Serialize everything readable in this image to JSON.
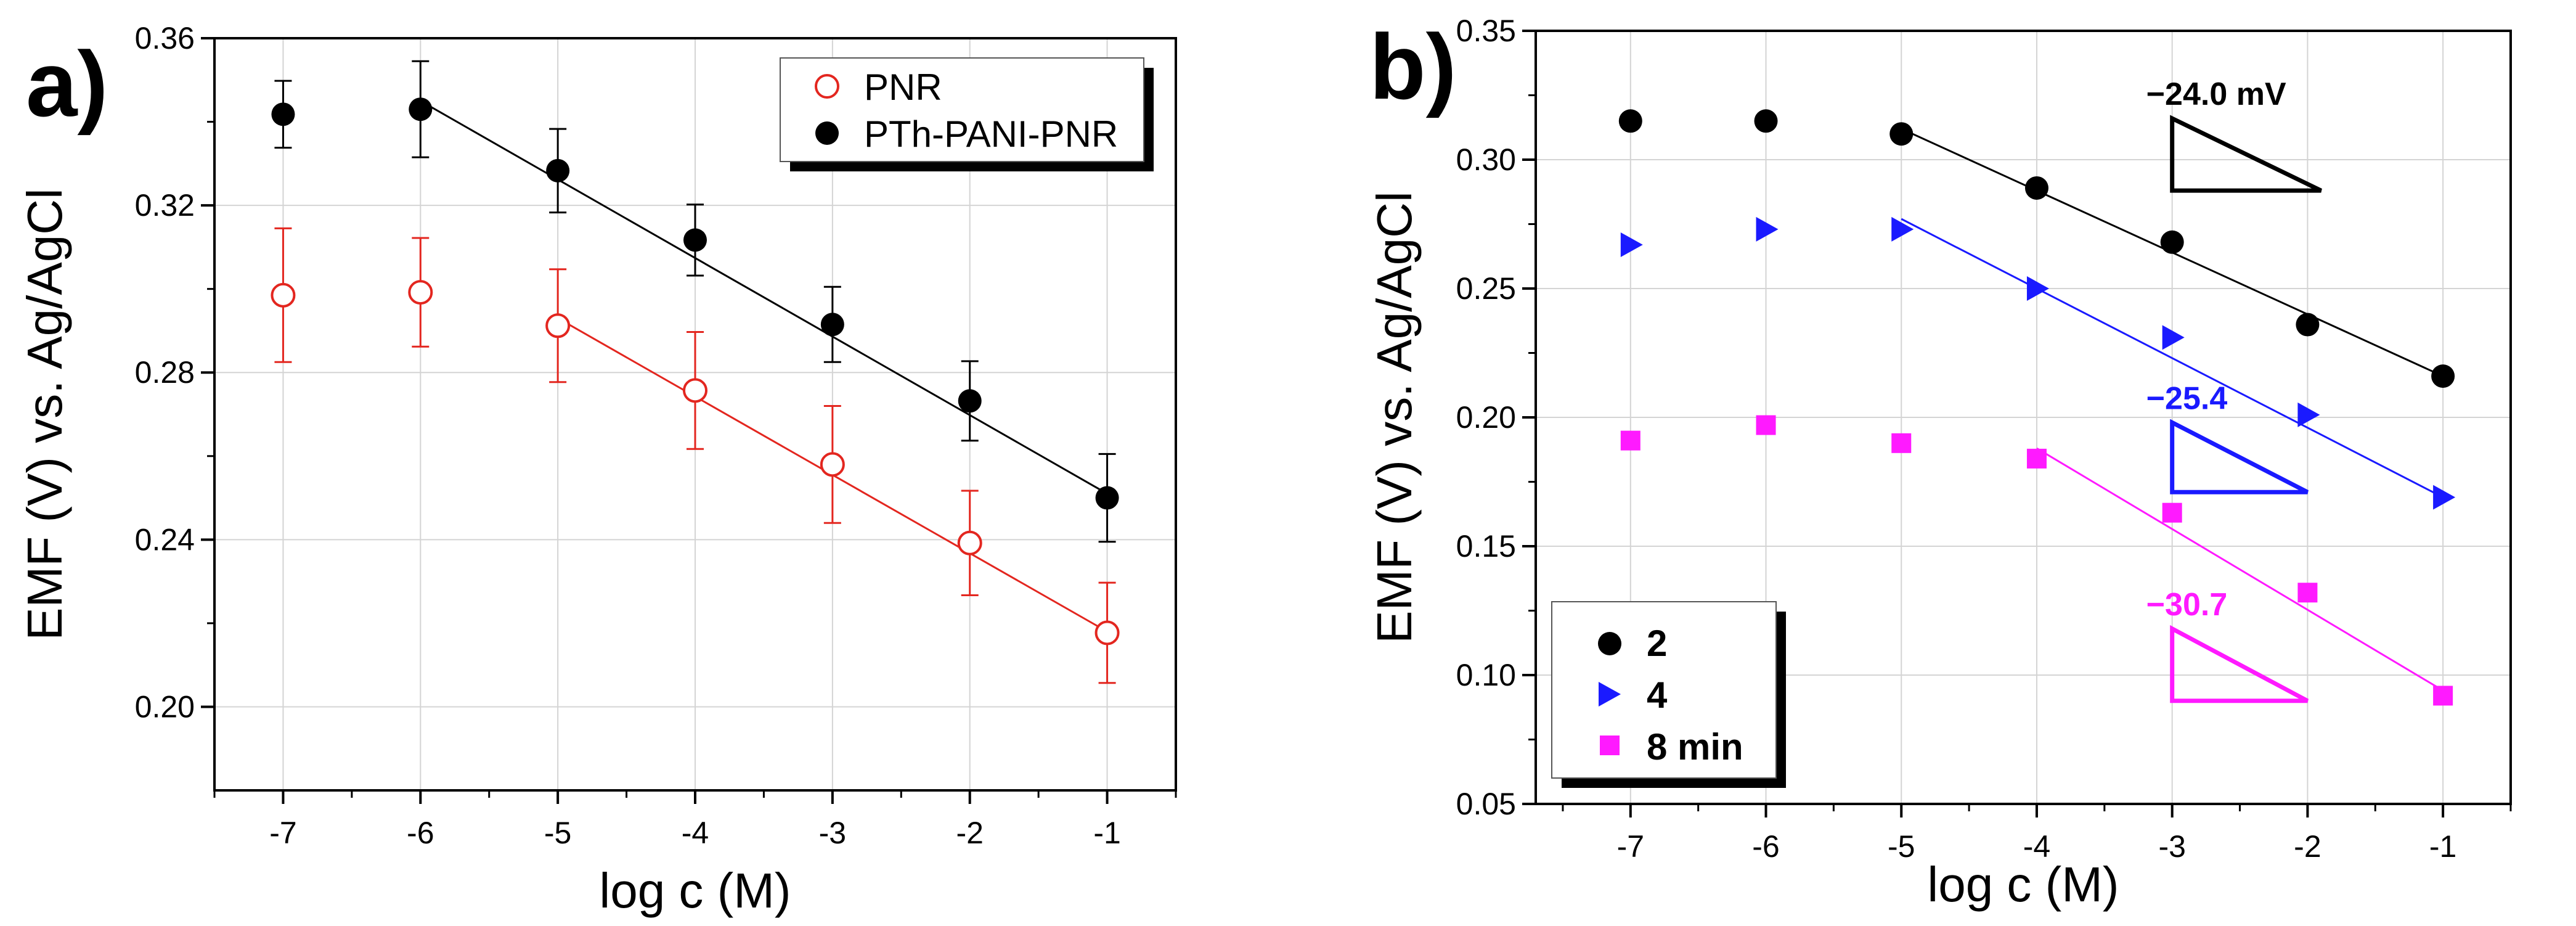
{
  "chart_data": [
    {
      "panel_label": "a)",
      "type": "scatter",
      "xlabel": "log c (M)",
      "ylabel": "EMF (V) vs. Ag/AgCl",
      "xlim": [
        -7.5,
        -0.5
      ],
      "ylim": [
        0.18,
        0.36
      ],
      "x_ticks": [
        -7,
        -6,
        -5,
        -4,
        -3,
        -2,
        -1
      ],
      "x_tick_labels": [
        "-7",
        "-6",
        "-5",
        "-4",
        "-3",
        "-2",
        "-1"
      ],
      "y_ticks": [
        0.2,
        0.24,
        0.28,
        0.32,
        0.36
      ],
      "y_tick_labels": [
        "0.20",
        "0.24",
        "0.28",
        "0.32",
        "0.36"
      ],
      "grid": true,
      "legend_position": "top-right",
      "series": [
        {
          "name": "PNR",
          "color": "#e3261f",
          "marker": "open-circle",
          "x": [
            -7,
            -6,
            -5,
            -4,
            -3,
            -2,
            -1
          ],
          "y": [
            0.2985,
            0.2992,
            0.2912,
            0.2757,
            0.258,
            0.2392,
            0.2177
          ],
          "err": [
            0.016,
            0.013,
            0.0135,
            0.014,
            0.014,
            0.0125,
            0.012
          ],
          "fit": {
            "x": [
              -5,
              -1
            ],
            "y": [
              0.293,
              0.218
            ]
          }
        },
        {
          "name": "PTh-PANI-PNR",
          "color": "#000000",
          "marker": "filled-circle",
          "x": [
            -7,
            -6,
            -5,
            -4,
            -3,
            -2,
            -1
          ],
          "y": [
            0.3418,
            0.343,
            0.3283,
            0.3117,
            0.2915,
            0.2732,
            0.25
          ],
          "err": [
            0.008,
            0.0115,
            0.01,
            0.0085,
            0.009,
            0.0095,
            0.0105
          ],
          "fit": {
            "x": [
              -6,
              -1
            ],
            "y": [
              0.345,
              0.251
            ]
          }
        }
      ]
    },
    {
      "panel_label": "b)",
      "type": "scatter",
      "xlabel": "log c (M)",
      "ylabel": "EMF (V) vs. Ag/AgCl",
      "xlim": [
        -7.7,
        -0.5
      ],
      "ylim": [
        0.05,
        0.35
      ],
      "x_ticks": [
        -7,
        -6,
        -5,
        -4,
        -3,
        -2,
        -1
      ],
      "x_tick_labels": [
        "-7",
        "-6",
        "-5",
        "-4",
        "-3",
        "-2",
        "-1"
      ],
      "y_ticks": [
        0.05,
        0.1,
        0.15,
        0.2,
        0.25,
        0.3,
        0.35
      ],
      "y_tick_labels": [
        "0.05",
        "0.10",
        "0.15",
        "0.20",
        "0.25",
        "0.30",
        "0.35"
      ],
      "grid": true,
      "legend_position": "bottom-left",
      "series": [
        {
          "name": "2",
          "color": "#000000",
          "marker": "filled-circle",
          "x": [
            -7,
            -6,
            -5,
            -4,
            -3,
            -2,
            -1
          ],
          "y": [
            0.315,
            0.315,
            0.31,
            0.289,
            0.268,
            0.236,
            0.216
          ],
          "fit": {
            "x": [
              -5,
              -1
            ],
            "y": [
              0.312,
              0.216
            ]
          },
          "slope_label": "−24.0 mV",
          "slope_triangle": {
            "x": [
              -3,
              -1.9
            ],
            "y": [
              0.316,
              0.288
            ]
          }
        },
        {
          "name": "4",
          "color": "#1a1aff",
          "marker": "right-triangle",
          "x": [
            -7,
            -6,
            -5,
            -4,
            -3,
            -2,
            -1
          ],
          "y": [
            0.267,
            0.273,
            0.273,
            0.25,
            0.231,
            0.201,
            0.169
          ],
          "fit": {
            "x": [
              -5,
              -1
            ],
            "y": [
              0.277,
              0.169
            ]
          },
          "slope_label": "−25.4",
          "slope_triangle": {
            "x": [
              -3,
              -2
            ],
            "y": [
              0.198,
              0.171
            ]
          }
        },
        {
          "name": "8 min",
          "color": "#ff1aff",
          "marker": "filled-square",
          "x": [
            -7,
            -6,
            -5,
            -4,
            -3,
            -2,
            -1
          ],
          "y": [
            0.191,
            0.197,
            0.19,
            0.184,
            0.163,
            0.132,
            0.092
          ],
          "fit": {
            "x": [
              -4,
              -1
            ],
            "y": [
              0.188,
              0.094
            ]
          },
          "slope_label": "−30.7",
          "slope_triangle": {
            "x": [
              -3,
              -2
            ],
            "y": [
              0.118,
              0.09
            ]
          }
        }
      ]
    }
  ]
}
